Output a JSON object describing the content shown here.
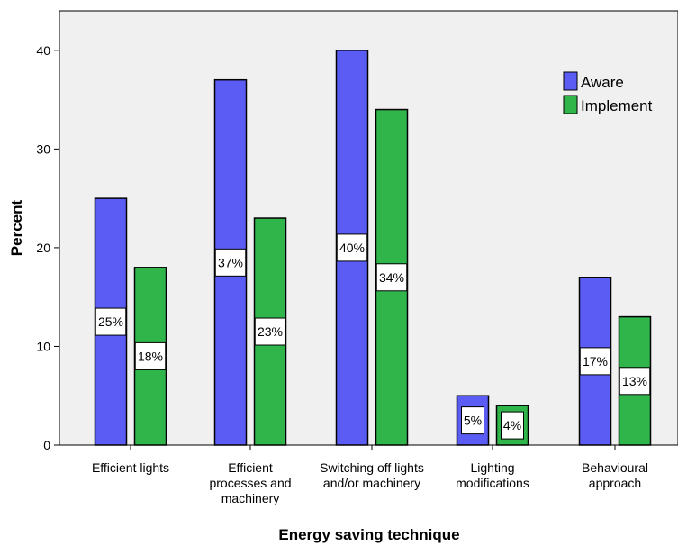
{
  "chart_data": {
    "type": "bar",
    "title": "",
    "xlabel": "Energy saving technique",
    "ylabel": "Percent",
    "ylim": [
      0,
      44
    ],
    "yticks": [
      0,
      10,
      20,
      30,
      40
    ],
    "grid": false,
    "legend_position": "top-right",
    "categories": [
      [
        "Efficient lights"
      ],
      [
        "Efficient",
        "processes and",
        "machinery"
      ],
      [
        "Switching off lights",
        "and/or machinery"
      ],
      [
        "Lighting",
        "modifications"
      ],
      [
        "Behavioural",
        "approach"
      ]
    ],
    "series": [
      {
        "name": "Aware",
        "color": "#5a5cf4",
        "values": [
          25,
          37,
          40,
          5,
          17
        ],
        "labels": [
          "25%",
          "37%",
          "40%",
          "5%",
          "17%"
        ]
      },
      {
        "name": "Implement",
        "color": "#2fb54a",
        "values": [
          18,
          23,
          34,
          4,
          13
        ],
        "labels": [
          "18%",
          "23%",
          "34%",
          "4%",
          "13%"
        ]
      }
    ],
    "plot_background": "#f0f0f0"
  }
}
